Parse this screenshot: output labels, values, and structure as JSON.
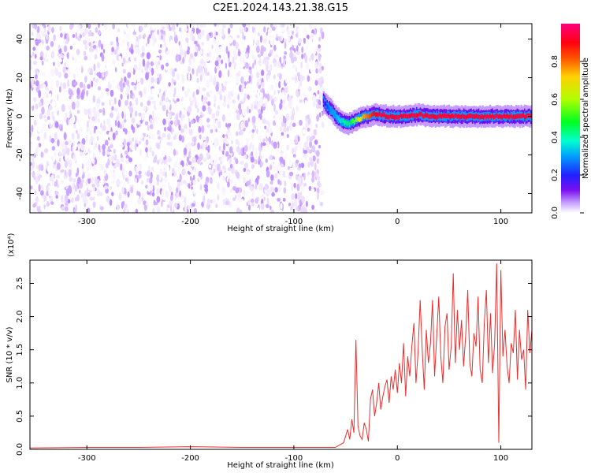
{
  "title": "C2E1.2024.143.21.38.G15",
  "colors": {
    "snr_line": "#e8302f",
    "background": "#ffffff",
    "colormap": [
      "#ffffff",
      "#e6d4ff",
      "#b47cff",
      "#7a10f0",
      "#3a00ff",
      "#0060ff",
      "#00e0ff",
      "#00ff40",
      "#e0ff00",
      "#ff8000",
      "#ff0000",
      "#ff0070"
    ]
  },
  "chart_data": [
    {
      "type": "heatmap",
      "title": "C2E1.2024.143.21.38.G15",
      "xlabel": "Height of straight line (km)",
      "ylabel": "Frequency (Hz)",
      "xlim": [
        -355,
        130
      ],
      "ylim": [
        -50,
        48
      ],
      "x_ticks": [
        -300,
        -200,
        -100,
        0,
        100
      ],
      "y_ticks": [
        -40,
        -20,
        0,
        20,
        40
      ],
      "x_tick_labels": [
        "-300",
        "-200",
        "-100",
        "0",
        "100"
      ],
      "y_tick_labels": [
        "-40",
        "-20",
        "0",
        "20",
        "40"
      ],
      "noise_region_x": [
        -355,
        -72
      ],
      "signal_track": {
        "x": [
          -72,
          -68,
          -64,
          -60,
          -56,
          -52,
          -48,
          -44,
          -40,
          -36,
          -32,
          -28,
          -24,
          -20,
          -10,
          0,
          10,
          20,
          30,
          40,
          50,
          60,
          70,
          80,
          90,
          100,
          110,
          120,
          130
        ],
        "frequency": [
          8,
          5,
          3,
          0,
          -2,
          -3,
          -4,
          -3,
          -2,
          -1,
          0,
          0,
          1,
          1,
          0,
          0,
          0,
          1,
          0,
          0,
          0,
          0,
          0,
          0,
          0,
          0,
          0,
          0,
          0
        ],
        "amplitude": [
          0.3,
          0.45,
          0.5,
          0.5,
          0.55,
          0.6,
          0.6,
          0.65,
          0.7,
          0.75,
          0.8,
          0.85,
          0.9,
          0.95,
          0.95,
          0.95,
          0.95,
          0.95,
          0.95,
          0.95,
          0.95,
          0.95,
          0.95,
          0.95,
          0.95,
          0.95,
          0.95,
          0.95,
          0.95
        ]
      },
      "colorbar": {
        "label": "Normalized spectral amplitude",
        "range": [
          0.0,
          1.0
        ],
        "ticks": [
          0.0,
          0.2,
          0.4,
          0.6,
          0.8
        ],
        "tick_labels": [
          "0.0",
          "0.2",
          "0.4",
          "0.6",
          "0.8"
        ]
      }
    },
    {
      "type": "line",
      "xlabel": "Height of straight line (km)",
      "ylabel": "SNR (10 * v/v)",
      "y_multiplier": "(x10⁴)",
      "xlim": [
        -355,
        130
      ],
      "ylim": [
        0,
        2.85
      ],
      "x_ticks": [
        -300,
        -200,
        -100,
        0,
        100
      ],
      "y_ticks": [
        0.0,
        0.5,
        1.0,
        1.5,
        2.0,
        2.5
      ],
      "x_tick_labels": [
        "-300",
        "-200",
        "-100",
        "0",
        "100"
      ],
      "y_tick_labels": [
        "0.0",
        "0.5",
        "1.0",
        "1.5",
        "2.0",
        "2.5"
      ],
      "series": [
        {
          "x": [
            -355,
            -300,
            -250,
            -200,
            -150,
            -100,
            -80,
            -60,
            -52,
            -48,
            -46,
            -44,
            -42,
            -40,
            -38,
            -36,
            -34,
            -32,
            -30,
            -28,
            -26,
            -24,
            -22,
            -20,
            -18,
            -16,
            -14,
            -12,
            -10,
            -8,
            -6,
            -4,
            -2,
            0,
            2,
            4,
            6,
            8,
            10,
            12,
            14,
            16,
            18,
            20,
            22,
            24,
            26,
            28,
            30,
            32,
            34,
            36,
            38,
            40,
            42,
            44,
            46,
            48,
            50,
            52,
            54,
            56,
            58,
            60,
            62,
            64,
            66,
            68,
            70,
            72,
            74,
            76,
            78,
            80,
            82,
            84,
            86,
            88,
            90,
            92,
            94,
            96,
            98,
            100,
            102,
            104,
            106,
            108,
            110,
            112,
            114,
            116,
            118,
            120,
            122,
            124,
            126,
            128,
            130
          ],
          "y": [
            0.02,
            0.03,
            0.03,
            0.04,
            0.03,
            0.03,
            0.03,
            0.03,
            0.1,
            0.3,
            0.15,
            0.45,
            0.25,
            1.65,
            0.35,
            0.2,
            0.15,
            0.4,
            0.3,
            0.12,
            0.75,
            0.9,
            0.5,
            0.7,
            1.0,
            0.6,
            0.8,
            0.95,
            1.05,
            0.7,
            1.1,
            0.9,
            1.2,
            0.85,
            1.3,
            1.0,
            1.6,
            0.8,
            1.4,
            1.1,
            1.55,
            1.9,
            1.0,
            1.45,
            2.25,
            1.5,
            0.9,
            1.8,
            1.3,
            1.6,
            2.25,
            1.1,
            1.7,
            2.3,
            1.4,
            1.0,
            1.85,
            2.05,
            1.2,
            1.55,
            2.65,
            1.3,
            2.1,
            1.5,
            1.95,
            1.25,
            1.7,
            2.4,
            1.3,
            1.1,
            1.75,
            1.55,
            2.3,
            1.2,
            1.0,
            1.9,
            2.4,
            1.3,
            2.05,
            1.15,
            1.6,
            2.8,
            0.1,
            2.7,
            1.4,
            1.8,
            1.25,
            1.0,
            1.6,
            1.45,
            2.1,
            1.05,
            1.8,
            1.35,
            1.5,
            0.9,
            2.1,
            1.45,
            1.8
          ]
        }
      ]
    }
  ]
}
